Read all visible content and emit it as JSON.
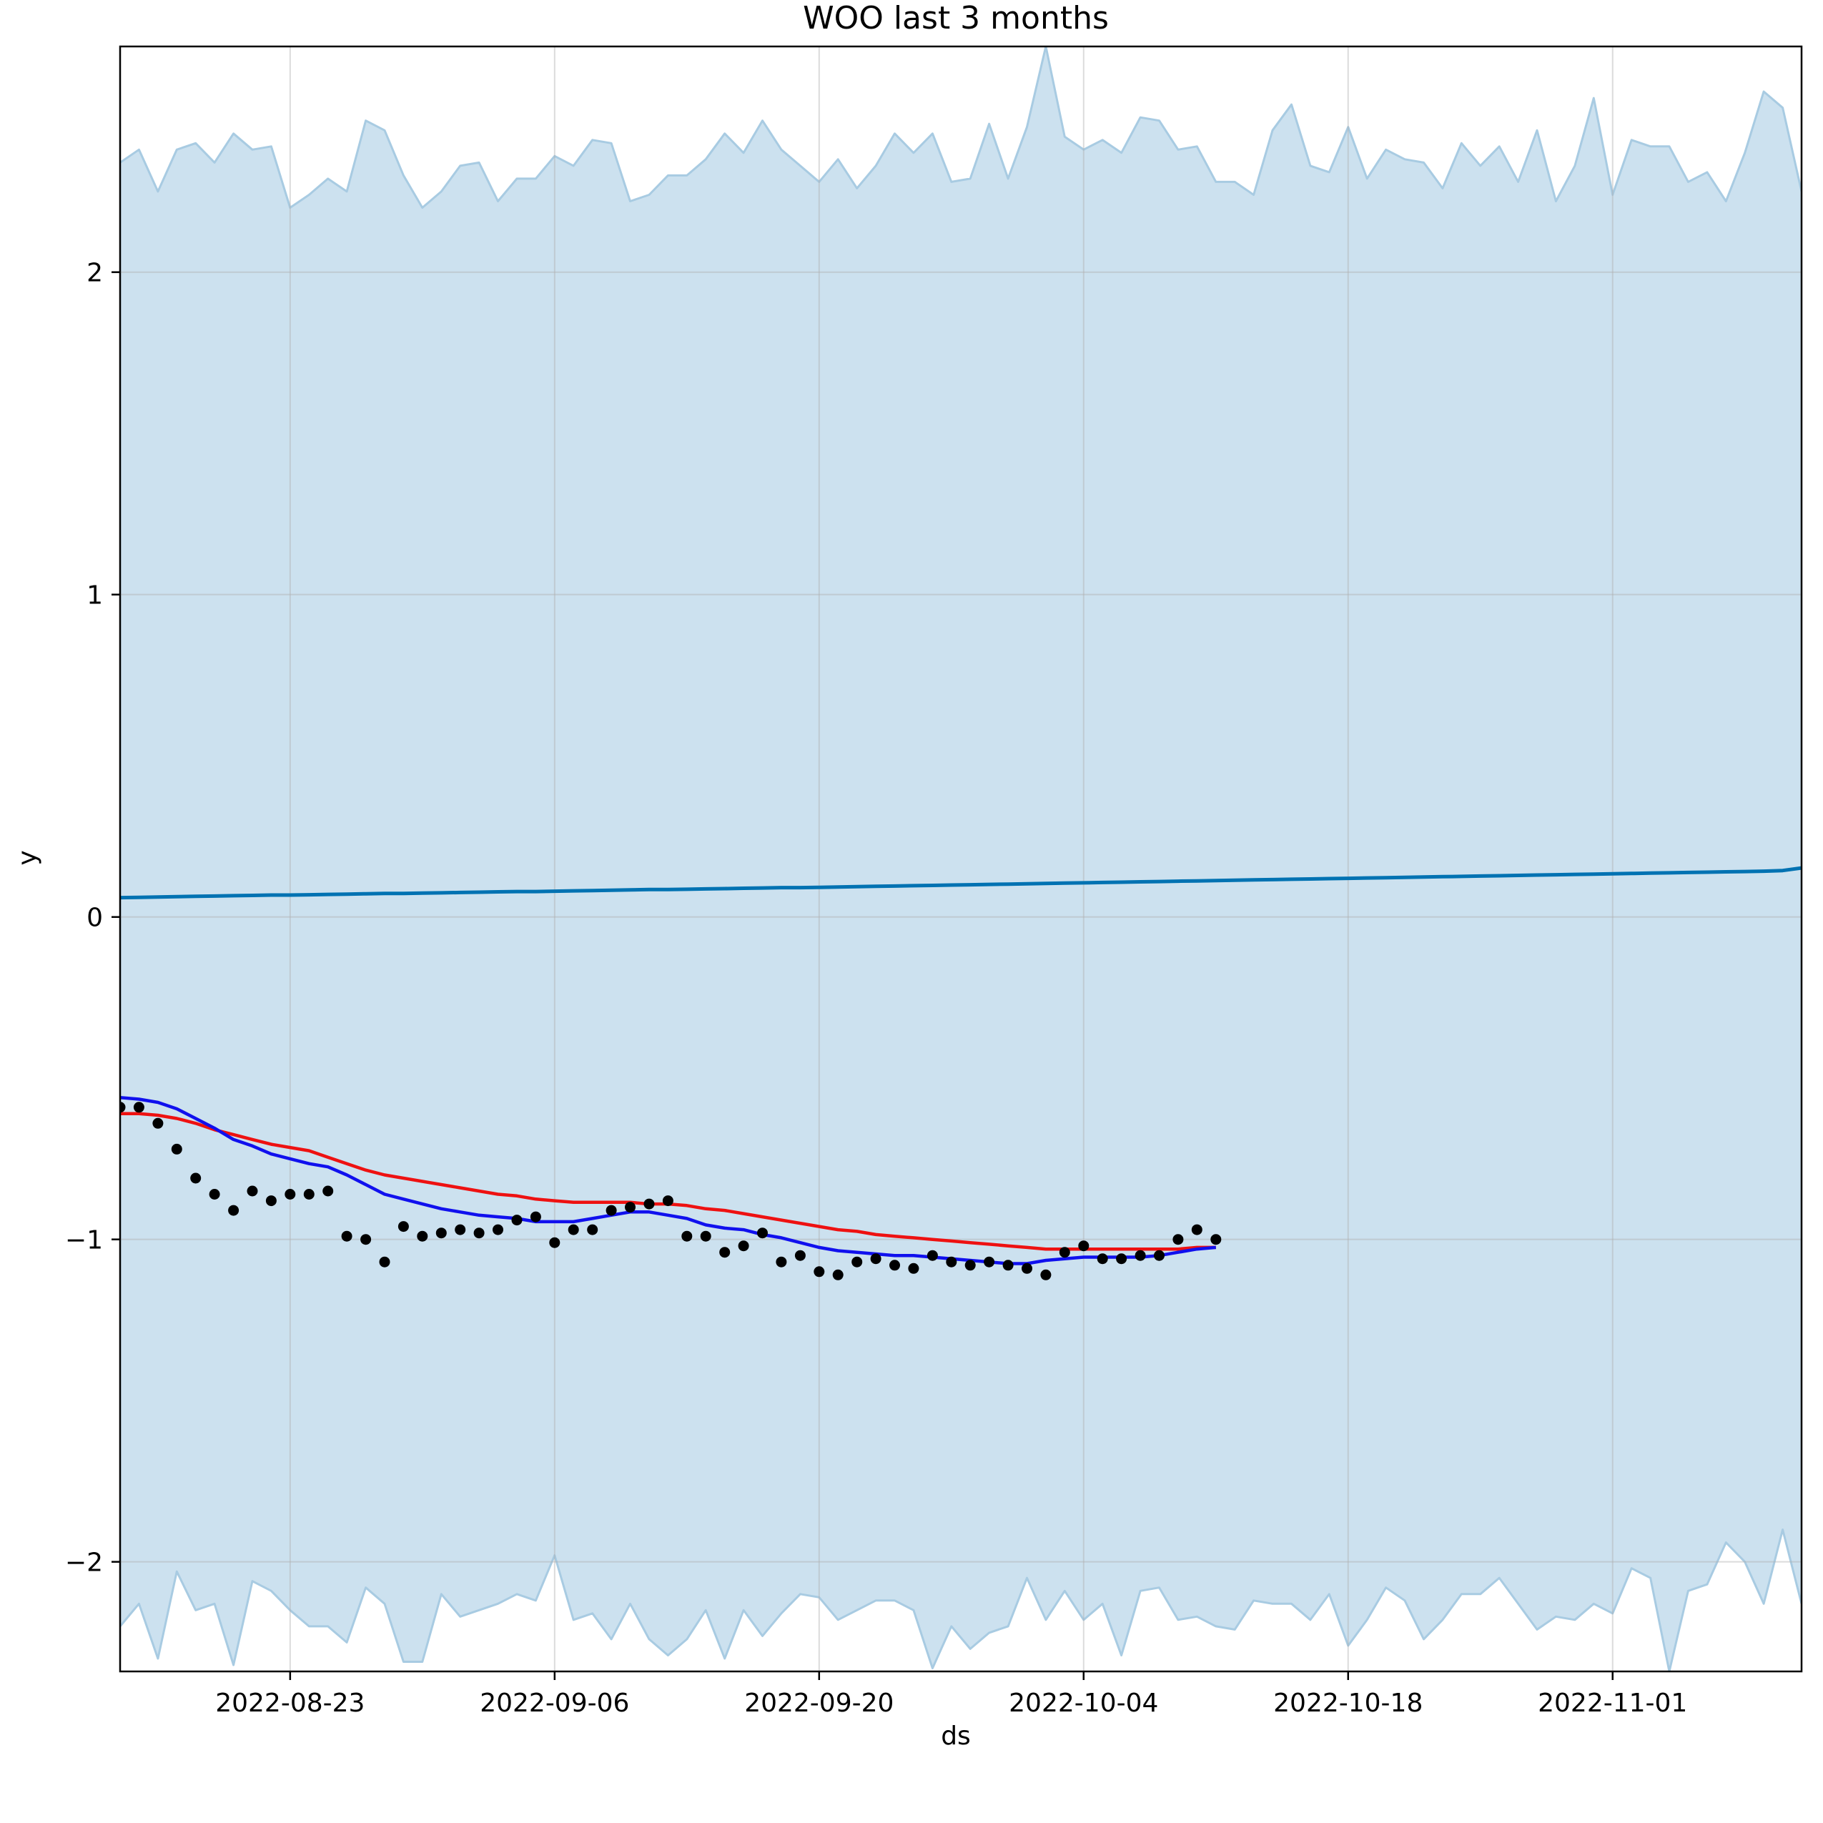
{
  "chart_data": {
    "type": "line",
    "title": "WOO last 3 months",
    "xlabel": "ds",
    "ylabel": "y",
    "x_start": "2022-08-14",
    "x_days": 89,
    "xlim_days": [
      0,
      89
    ],
    "ylim": [
      -2.34,
      2.7
    ],
    "grid": true,
    "xticks": [
      {
        "label": "2022-08-23",
        "day": 9
      },
      {
        "label": "2022-09-06",
        "day": 23
      },
      {
        "label": "2022-09-20",
        "day": 37
      },
      {
        "label": "2022-10-04",
        "day": 51
      },
      {
        "label": "2022-10-18",
        "day": 65
      },
      {
        "label": "2022-11-01",
        "day": 79
      }
    ],
    "yticks": [
      {
        "label": "−2",
        "value": -2
      },
      {
        "label": "−1",
        "value": -1
      },
      {
        "label": "0",
        "value": 0
      },
      {
        "label": "1",
        "value": 1
      },
      {
        "label": "2",
        "value": 2
      }
    ],
    "colors": {
      "band_fill": "#cce1ef",
      "band_edge": "#a8cbe2",
      "trend": "#0072b2",
      "red_line": "#ee1111",
      "blue_line": "#1010ee",
      "points": "#000000",
      "grid": "#b0b0b0"
    },
    "series": [
      {
        "name": "yhat_upper",
        "values": [
          2.34,
          2.38,
          2.25,
          2.38,
          2.4,
          2.34,
          2.43,
          2.38,
          2.39,
          2.2,
          2.24,
          2.29,
          2.25,
          2.47,
          2.44,
          2.3,
          2.2,
          2.25,
          2.33,
          2.34,
          2.22,
          2.29,
          2.29,
          2.36,
          2.33,
          2.41,
          2.4,
          2.22,
          2.24,
          2.3,
          2.3,
          2.35,
          2.43,
          2.37,
          2.47,
          2.38,
          2.33,
          2.28,
          2.35,
          2.26,
          2.33,
          2.43,
          2.37,
          2.43,
          2.28,
          2.29,
          2.46,
          2.29,
          2.45,
          2.7,
          2.42,
          2.38,
          2.41,
          2.37,
          2.48,
          2.47,
          2.38,
          2.39,
          2.28,
          2.28,
          2.24,
          2.44,
          2.52,
          2.33,
          2.31,
          2.45,
          2.29,
          2.38,
          2.35,
          2.34,
          2.26,
          2.4,
          2.33,
          2.39,
          2.28,
          2.44,
          2.22,
          2.33,
          2.54,
          2.24,
          2.41,
          2.39,
          2.39,
          2.28,
          2.31,
          2.22,
          2.37,
          2.56,
          2.51,
          2.25
        ]
      },
      {
        "name": "yhat_lower",
        "values": [
          -2.2,
          -2.13,
          -2.3,
          -2.03,
          -2.15,
          -2.13,
          -2.32,
          -2.06,
          -2.09,
          -2.15,
          -2.2,
          -2.2,
          -2.25,
          -2.08,
          -2.13,
          -2.31,
          -2.31,
          -2.1,
          -2.17,
          -2.15,
          -2.13,
          -2.1,
          -2.12,
          -1.98,
          -2.18,
          -2.16,
          -2.24,
          -2.13,
          -2.24,
          -2.29,
          -2.24,
          -2.15,
          -2.3,
          -2.15,
          -2.23,
          -2.16,
          -2.1,
          -2.11,
          -2.18,
          -2.15,
          -2.12,
          -2.12,
          -2.15,
          -2.33,
          -2.2,
          -2.27,
          -2.22,
          -2.2,
          -2.05,
          -2.18,
          -2.09,
          -2.18,
          -2.13,
          -2.29,
          -2.09,
          -2.08,
          -2.18,
          -2.17,
          -2.2,
          -2.21,
          -2.12,
          -2.13,
          -2.13,
          -2.18,
          -2.1,
          -2.26,
          -2.18,
          -2.08,
          -2.12,
          -2.24,
          -2.18,
          -2.1,
          -2.1,
          -2.05,
          -2.13,
          -2.21,
          -2.17,
          -2.18,
          -2.13,
          -2.16,
          -2.02,
          -2.05,
          -2.34,
          -2.09,
          -2.07,
          -1.94,
          -2.0,
          -2.13,
          -1.9,
          -2.13
        ]
      },
      {
        "name": "trend",
        "values": [
          0.06,
          0.061,
          0.062,
          0.063,
          0.064,
          0.065,
          0.066,
          0.067,
          0.068,
          0.068,
          0.069,
          0.07,
          0.071,
          0.072,
          0.073,
          0.073,
          0.074,
          0.075,
          0.076,
          0.077,
          0.078,
          0.079,
          0.079,
          0.08,
          0.081,
          0.082,
          0.083,
          0.084,
          0.085,
          0.085,
          0.086,
          0.087,
          0.088,
          0.089,
          0.09,
          0.091,
          0.091,
          0.092,
          0.093,
          0.094,
          0.095,
          0.096,
          0.097,
          0.098,
          0.099,
          0.1,
          0.101,
          0.102,
          0.103,
          0.104,
          0.105,
          0.106,
          0.107,
          0.108,
          0.109,
          0.11,
          0.111,
          0.112,
          0.113,
          0.114,
          0.115,
          0.116,
          0.117,
          0.118,
          0.119,
          0.12,
          0.121,
          0.122,
          0.123,
          0.124,
          0.125,
          0.126,
          0.127,
          0.128,
          0.129,
          0.13,
          0.131,
          0.132,
          0.133,
          0.134,
          0.135,
          0.136,
          0.137,
          0.138,
          0.139,
          0.14,
          0.141,
          0.142,
          0.144,
          0.152
        ]
      },
      {
        "name": "red_line",
        "values": [
          -0.61,
          -0.61,
          -0.615,
          -0.625,
          -0.64,
          -0.66,
          -0.675,
          -0.69,
          -0.705,
          -0.715,
          -0.725,
          -0.745,
          -0.765,
          -0.785,
          -0.8,
          -0.81,
          -0.82,
          -0.83,
          -0.84,
          -0.85,
          -0.86,
          -0.865,
          -0.875,
          -0.88,
          -0.885,
          -0.885,
          -0.885,
          -0.885,
          -0.89,
          -0.89,
          -0.895,
          -0.905,
          -0.91,
          -0.92,
          -0.93,
          -0.94,
          -0.95,
          -0.96,
          -0.97,
          -0.975,
          -0.985,
          -0.99,
          -0.995,
          -1.0,
          -1.005,
          -1.01,
          -1.015,
          -1.02,
          -1.025,
          -1.03,
          -1.03,
          -1.03,
          -1.03,
          -1.03,
          -1.03,
          -1.03,
          -1.03,
          -1.025,
          -1.025
        ]
      },
      {
        "name": "blue_line",
        "values": [
          -0.56,
          -0.565,
          -0.575,
          -0.595,
          -0.625,
          -0.655,
          -0.69,
          -0.71,
          -0.735,
          -0.75,
          -0.765,
          -0.775,
          -0.8,
          -0.83,
          -0.86,
          -0.875,
          -0.89,
          -0.905,
          -0.915,
          -0.925,
          -0.93,
          -0.935,
          -0.945,
          -0.945,
          -0.945,
          -0.935,
          -0.925,
          -0.915,
          -0.915,
          -0.925,
          -0.935,
          -0.955,
          -0.965,
          -0.97,
          -0.985,
          -0.995,
          -1.01,
          -1.025,
          -1.035,
          -1.04,
          -1.045,
          -1.05,
          -1.05,
          -1.055,
          -1.06,
          -1.065,
          -1.07,
          -1.075,
          -1.075,
          -1.065,
          -1.06,
          -1.055,
          -1.055,
          -1.055,
          -1.055,
          -1.05,
          -1.04,
          -1.03,
          -1.025
        ]
      },
      {
        "name": "actual_points",
        "values": [
          -0.59,
          -0.59,
          -0.64,
          -0.72,
          -0.81,
          -0.86,
          -0.91,
          -0.85,
          -0.88,
          -0.86,
          -0.86,
          -0.85,
          -0.99,
          -1.0,
          -1.07,
          -0.96,
          -0.99,
          -0.98,
          -0.97,
          -0.98,
          -0.97,
          -0.94,
          -0.93,
          -1.01,
          -0.97,
          -0.97,
          -0.91,
          -0.9,
          -0.89,
          -0.88,
          -0.99,
          -0.99,
          -1.04,
          -1.02,
          -0.98,
          -1.07,
          -1.05,
          -1.1,
          -1.11,
          -1.07,
          -1.06,
          -1.08,
          -1.09,
          -1.05,
          -1.07,
          -1.08,
          -1.07,
          -1.08,
          -1.09,
          -1.11,
          -1.04,
          -1.02,
          -1.06,
          -1.06,
          -1.05,
          -1.05,
          -1.0,
          -0.97,
          -1.0
        ]
      }
    ]
  }
}
